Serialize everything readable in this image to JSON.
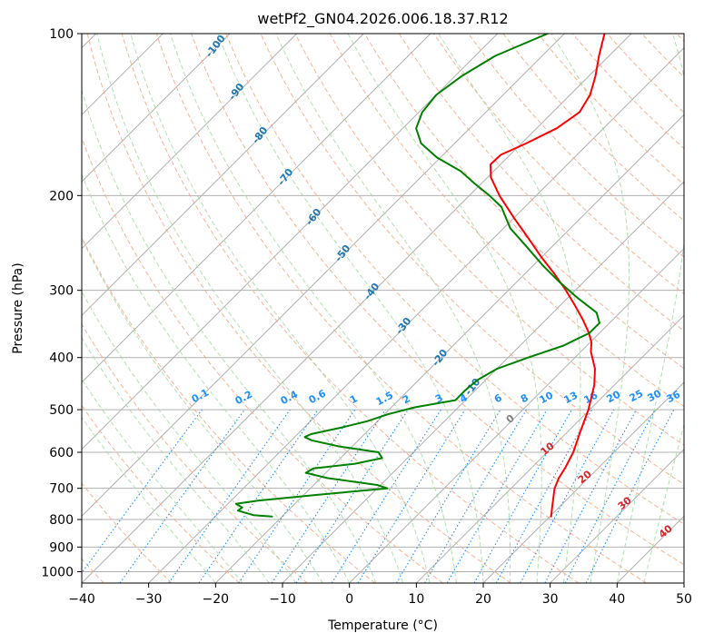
{
  "chart_data": {
    "type": "line",
    "subtype": "skew-T log-P diagram",
    "title": "wetPf2_GN04.2026.006.18.37.R12",
    "xlabel": "Temperature (°C)",
    "ylabel": "Pressure (hPa)",
    "xlim": [
      -40,
      50
    ],
    "ylim": [
      1050,
      100
    ],
    "y_scale": "log",
    "x_ticks": [
      "−40",
      "−30",
      "−20",
      "−10",
      "0",
      "10",
      "20",
      "30",
      "40",
      "50"
    ],
    "x_tick_values": [
      -40,
      -30,
      -20,
      -10,
      0,
      10,
      20,
      30,
      40,
      50
    ],
    "y_ticks": [
      "100",
      "200",
      "300",
      "400",
      "500",
      "600",
      "700",
      "800",
      "900",
      "1000"
    ],
    "y_tick_values": [
      100,
      200,
      300,
      400,
      500,
      600,
      700,
      800,
      900,
      1000
    ],
    "grid": true,
    "background_lines": {
      "isotherms": {
        "color": "#b0b0b0",
        "style": "solid"
      },
      "dry_adiabats": {
        "color": "#f4a582",
        "style": "dashed"
      },
      "moist_adiabats": {
        "color": "#a6d8a6",
        "style": "dashed"
      },
      "mixing_ratio_lines": {
        "color": "#1e90ff",
        "style": "dotted"
      }
    },
    "mixing_ratio_labels": [
      "0.1",
      "0.2",
      "0.4",
      "0.6",
      "1",
      "1.5",
      "2",
      "3",
      "4",
      "6",
      "8",
      "10",
      "13",
      "16",
      "20",
      "25",
      "30",
      "36"
    ],
    "dry_adiabat_labels": [
      "-100",
      "-90",
      "-80",
      "-70",
      "-60",
      "-50",
      "-40",
      "-30",
      "-20",
      "-10"
    ],
    "moist_adiabat_labels": [
      "0",
      "10",
      "20",
      "30",
      "40"
    ],
    "series": [
      {
        "color": "#ff0000",
        "points": [
          {
            "p": 790,
            "t": 20.2
          },
          {
            "p": 760,
            "t": 19.0
          },
          {
            "p": 700,
            "t": 16.5
          },
          {
            "p": 670,
            "t": 15.6
          },
          {
            "p": 640,
            "t": 15.0
          },
          {
            "p": 600,
            "t": 13.9
          },
          {
            "p": 550,
            "t": 11.9
          },
          {
            "p": 500,
            "t": 9.8
          },
          {
            "p": 450,
            "t": 7.0
          },
          {
            "p": 420,
            "t": 4.7
          },
          {
            "p": 390,
            "t": 1.5
          },
          {
            "p": 375,
            "t": 0.2
          },
          {
            "p": 360,
            "t": -1.6
          },
          {
            "p": 340,
            "t": -4.5
          },
          {
            "p": 320,
            "t": -7.8
          },
          {
            "p": 300,
            "t": -11.4
          },
          {
            "p": 280,
            "t": -15.5
          },
          {
            "p": 260,
            "t": -20.1
          },
          {
            "p": 240,
            "t": -24.8
          },
          {
            "p": 220,
            "t": -30.0
          },
          {
            "p": 200,
            "t": -35.5
          },
          {
            "p": 185,
            "t": -39.5
          },
          {
            "p": 175,
            "t": -41.5
          },
          {
            "p": 168,
            "t": -41.4
          },
          {
            "p": 160,
            "t": -39.3
          },
          {
            "p": 150,
            "t": -37.0
          },
          {
            "p": 140,
            "t": -36.0
          },
          {
            "p": 130,
            "t": -37.0
          },
          {
            "p": 120,
            "t": -39.0
          },
          {
            "p": 110,
            "t": -41.5
          },
          {
            "p": 100,
            "t": -44.0
          }
        ]
      },
      {
        "color": "#008000",
        "points": [
          {
            "p": 790,
            "t": -21.5
          },
          {
            "p": 785,
            "t": -24.5
          },
          {
            "p": 770,
            "t": -27.5
          },
          {
            "p": 760,
            "t": -27.3
          },
          {
            "p": 748,
            "t": -28.8
          },
          {
            "p": 738,
            "t": -26.0
          },
          {
            "p": 720,
            "t": -18.0
          },
          {
            "p": 700,
            "t": -8.5
          },
          {
            "p": 690,
            "t": -10.5
          },
          {
            "p": 670,
            "t": -19.0
          },
          {
            "p": 655,
            "t": -23.0
          },
          {
            "p": 643,
            "t": -22.5
          },
          {
            "p": 630,
            "t": -17.0
          },
          {
            "p": 615,
            "t": -13.8
          },
          {
            "p": 600,
            "t": -15.2
          },
          {
            "p": 585,
            "t": -22.0
          },
          {
            "p": 570,
            "t": -27.0
          },
          {
            "p": 562,
            "t": -28.5
          },
          {
            "p": 555,
            "t": -28.0
          },
          {
            "p": 540,
            "t": -24.5
          },
          {
            "p": 525,
            "t": -21.5
          },
          {
            "p": 510,
            "t": -19.5
          },
          {
            "p": 495,
            "t": -16.5
          },
          {
            "p": 480,
            "t": -11.5
          },
          {
            "p": 460,
            "t": -11.5
          },
          {
            "p": 440,
            "t": -11.2
          },
          {
            "p": 420,
            "t": -10.0
          },
          {
            "p": 400,
            "t": -7.0
          },
          {
            "p": 380,
            "t": -3.5
          },
          {
            "p": 360,
            "t": -1.5
          },
          {
            "p": 345,
            "t": -1.5
          },
          {
            "p": 330,
            "t": -3.5
          },
          {
            "p": 310,
            "t": -8.5
          },
          {
            "p": 290,
            "t": -13.5
          },
          {
            "p": 270,
            "t": -18.5
          },
          {
            "p": 250,
            "t": -23.5
          },
          {
            "p": 230,
            "t": -29.0
          },
          {
            "p": 210,
            "t": -33.5
          },
          {
            "p": 200,
            "t": -37.0
          },
          {
            "p": 190,
            "t": -41.0
          },
          {
            "p": 180,
            "t": -45.0
          },
          {
            "p": 170,
            "t": -50.5
          },
          {
            "p": 160,
            "t": -55.0
          },
          {
            "p": 150,
            "t": -58.0
          },
          {
            "p": 140,
            "t": -59.5
          },
          {
            "p": 130,
            "t": -60.0
          },
          {
            "p": 120,
            "t": -59.0
          },
          {
            "p": 110,
            "t": -57.0
          },
          {
            "p": 100,
            "t": -52.5
          }
        ]
      }
    ]
  }
}
